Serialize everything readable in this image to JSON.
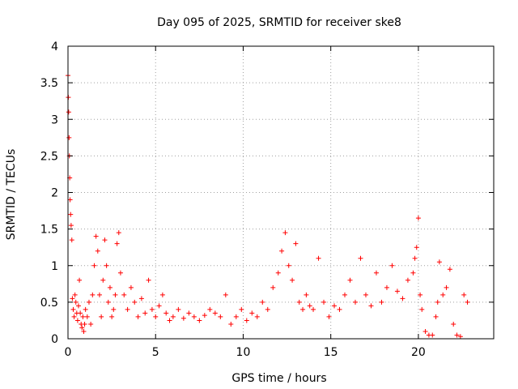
{
  "chart_data": {
    "type": "scatter",
    "title": "Day 095 of 2025, SRMTID for receiver ske8",
    "xlabel": "GPS time / hours",
    "ylabel": "SRMTID / TECUs",
    "xlim": [
      0,
      24.3
    ],
    "ylim": [
      0,
      4
    ],
    "xticks": [
      0,
      5,
      10,
      15,
      20
    ],
    "xtick_labels": [
      "0",
      "5",
      "10",
      "15",
      "20"
    ],
    "yticks": [
      0,
      0.5,
      1,
      1.5,
      2,
      2.5,
      3,
      3.5,
      4
    ],
    "ytick_labels": [
      "0",
      "0.5",
      "1",
      "1.5",
      "2",
      "2.5",
      "3",
      "3.5",
      "4"
    ],
    "grid": true,
    "marker": "+",
    "color": "#ff0000",
    "series": [
      {
        "name": "SRMTID",
        "x": [
          0.0,
          0.02,
          0.04,
          0.06,
          0.08,
          0.1,
          0.12,
          0.15,
          0.18,
          0.22,
          0.25,
          0.3,
          0.35,
          0.4,
          0.45,
          0.5,
          0.55,
          0.6,
          0.65,
          0.7,
          0.75,
          0.8,
          0.85,
          0.9,
          0.95,
          1.0,
          1.1,
          1.2,
          1.3,
          1.4,
          1.5,
          1.6,
          1.7,
          1.8,
          1.9,
          2.0,
          2.1,
          2.2,
          2.3,
          2.4,
          2.5,
          2.6,
          2.7,
          2.8,
          2.9,
          3.0,
          3.2,
          3.4,
          3.6,
          3.8,
          4.0,
          4.2,
          4.4,
          4.6,
          4.8,
          5.0,
          5.2,
          5.4,
          5.6,
          5.8,
          6.0,
          6.3,
          6.6,
          6.9,
          7.2,
          7.5,
          7.8,
          8.1,
          8.4,
          8.7,
          9.0,
          9.3,
          9.6,
          9.9,
          10.2,
          10.5,
          10.8,
          11.1,
          11.4,
          11.7,
          12.0,
          12.2,
          12.4,
          12.6,
          12.8,
          13.0,
          13.2,
          13.4,
          13.6,
          13.8,
          14.0,
          14.3,
          14.6,
          14.9,
          15.2,
          15.5,
          15.8,
          16.1,
          16.4,
          16.7,
          17.0,
          17.3,
          17.6,
          17.9,
          18.2,
          18.5,
          18.8,
          19.1,
          19.4,
          19.7,
          19.8,
          19.9,
          20.0,
          20.1,
          20.2,
          20.4,
          20.6,
          20.8,
          21.0,
          21.1,
          21.2,
          21.4,
          21.6,
          21.8,
          22.0,
          22.2,
          22.4,
          22.6,
          22.8
        ],
        "y": [
          3.6,
          3.3,
          3.1,
          2.75,
          2.5,
          2.2,
          1.9,
          1.7,
          1.55,
          1.35,
          0.55,
          0.4,
          0.3,
          0.6,
          0.5,
          0.35,
          0.25,
          0.45,
          0.8,
          0.35,
          0.2,
          0.15,
          0.3,
          0.1,
          0.2,
          0.4,
          0.3,
          0.5,
          0.2,
          0.6,
          1.0,
          1.4,
          1.2,
          0.6,
          0.3,
          0.8,
          1.35,
          1.0,
          0.5,
          0.7,
          0.3,
          0.4,
          0.6,
          1.3,
          1.45,
          0.9,
          0.6,
          0.4,
          0.7,
          0.5,
          0.3,
          0.55,
          0.35,
          0.8,
          0.4,
          0.3,
          0.45,
          0.6,
          0.35,
          0.25,
          0.3,
          0.4,
          0.28,
          0.35,
          0.3,
          0.25,
          0.32,
          0.4,
          0.35,
          0.3,
          0.6,
          0.2,
          0.3,
          0.4,
          0.25,
          0.35,
          0.3,
          0.5,
          0.4,
          0.7,
          0.9,
          1.2,
          1.45,
          1.0,
          0.8,
          1.3,
          0.5,
          0.4,
          0.6,
          0.45,
          0.4,
          1.1,
          0.5,
          0.3,
          0.45,
          0.4,
          0.6,
          0.8,
          0.5,
          1.1,
          0.6,
          0.45,
          0.9,
          0.5,
          0.7,
          1.0,
          0.65,
          0.55,
          0.8,
          0.9,
          1.1,
          1.25,
          1.65,
          0.6,
          0.4,
          0.1,
          0.05,
          0.05,
          0.3,
          0.5,
          1.05,
          0.6,
          0.7,
          0.95,
          0.2,
          0.05,
          0.03,
          0.6,
          0.5
        ]
      }
    ]
  }
}
